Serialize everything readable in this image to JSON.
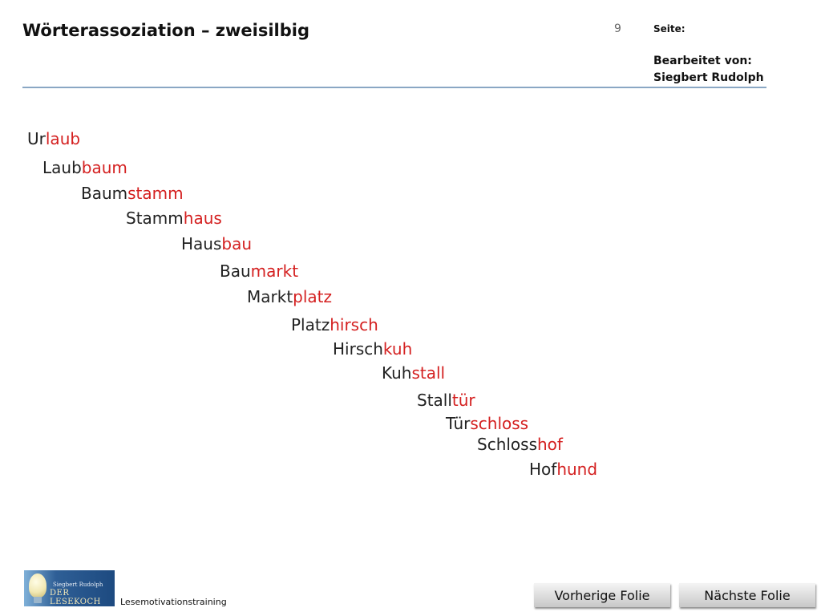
{
  "header": {
    "title": "Wörterassoziation – zweisilbig",
    "page_number": "9",
    "page_label": "Seite:",
    "edited_by_label": "Bearbeitet von:",
    "author": "Siegbert Rudolph"
  },
  "chain": [
    {
      "first": "Ur",
      "second": "laub"
    },
    {
      "first": "Laub",
      "second": "baum"
    },
    {
      "first": "Baum",
      "second": "stamm"
    },
    {
      "first": "Stamm",
      "second": "haus"
    },
    {
      "first": "Haus",
      "second": "bau"
    },
    {
      "first": "Bau",
      "second": "markt"
    },
    {
      "first": "Markt",
      "second": "platz"
    },
    {
      "first": "Platz",
      "second": "hirsch"
    },
    {
      "first": "Hirsch",
      "second": "kuh"
    },
    {
      "first": "Kuh",
      "second": "stall"
    },
    {
      "first": "Stall",
      "second": "tür"
    },
    {
      "first": "Tür",
      "second": "schloss"
    },
    {
      "first": "Schloss",
      "second": "hof"
    },
    {
      "first": "Hof",
      "second": "hund"
    }
  ],
  "footer": {
    "logo_top": "Siegbert Rudolph",
    "logo_brand": "DER LESEKOCH",
    "program": "Lesemotivationstraining",
    "prev_label": "Vorherige Folie",
    "next_label": "Nächste Folie"
  },
  "colors": {
    "highlight": "#d42020",
    "header_line": "#8aa7c4"
  }
}
